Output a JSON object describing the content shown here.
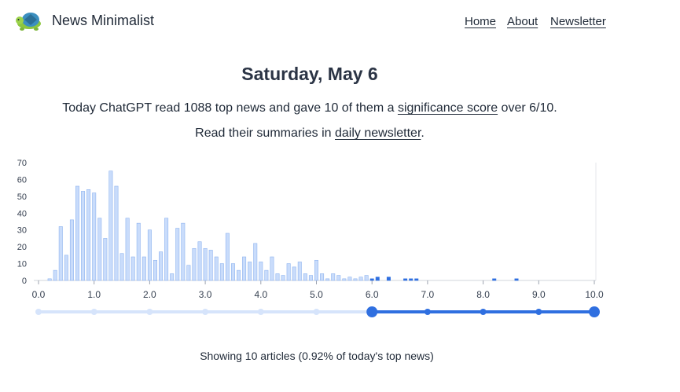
{
  "header": {
    "brand": "News Minimalist",
    "logo": "turtle-logo",
    "nav": {
      "home": "Home",
      "about": "About",
      "newsletter": "Newsletter"
    }
  },
  "main": {
    "date": "Saturday, May 6",
    "line1_pre": "Today ChatGPT read 1088 top news and gave 10 of them a ",
    "line1_link": "significance score",
    "line1_post": " over 6/10.",
    "line2_pre": "Read their summaries in ",
    "line2_link": "daily newsletter",
    "line2_post": "."
  },
  "colors": {
    "bar_light": "#c9dcfb",
    "bar_light_stroke": "#8fb4ef",
    "accent": "#2f6fe0",
    "track_light": "#d6e4fb"
  },
  "chart_data": {
    "type": "bar",
    "xlabel": "",
    "ylabel": "",
    "ylim": [
      0,
      70
    ],
    "xlim": [
      0,
      10
    ],
    "yticks": [
      "0",
      "10",
      "20",
      "30",
      "40",
      "50",
      "60",
      "70"
    ],
    "xticks": [
      "0.0",
      "1.0",
      "2.0",
      "3.0",
      "4.0",
      "5.0",
      "6.0",
      "7.0",
      "8.0",
      "9.0",
      "10.0"
    ],
    "x": [
      0.2,
      0.3,
      0.4,
      0.5,
      0.6,
      0.7,
      0.8,
      0.9,
      1.0,
      1.1,
      1.2,
      1.3,
      1.4,
      1.5,
      1.6,
      1.7,
      1.8,
      1.9,
      2.0,
      2.1,
      2.2,
      2.3,
      2.4,
      2.5,
      2.6,
      2.7,
      2.8,
      2.9,
      3.0,
      3.1,
      3.2,
      3.3,
      3.4,
      3.5,
      3.6,
      3.7,
      3.8,
      3.9,
      4.0,
      4.1,
      4.2,
      4.3,
      4.4,
      4.5,
      4.6,
      4.7,
      4.8,
      4.9,
      5.0,
      5.1,
      5.2,
      5.3,
      5.4,
      5.5,
      5.6,
      5.7,
      5.8,
      5.9,
      6.0,
      6.1,
      6.3,
      6.6,
      6.7,
      6.8,
      8.2,
      8.6
    ],
    "values": [
      1,
      6,
      32,
      15,
      36,
      56,
      53,
      54,
      52,
      37,
      25,
      65,
      56,
      16,
      37,
      14,
      34,
      14,
      30,
      12,
      17,
      37,
      4,
      31,
      34,
      9,
      19,
      23,
      19,
      18,
      14,
      10,
      28,
      10,
      6,
      14,
      11,
      22,
      11,
      6,
      14,
      4,
      3,
      10,
      8,
      11,
      4,
      3,
      12,
      4,
      1,
      4,
      3,
      1,
      2,
      1,
      2,
      3,
      1,
      2,
      2,
      1,
      1,
      1,
      1,
      1
    ]
  },
  "slider": {
    "min": 6.0,
    "max": 10.0
  },
  "footer": {
    "text": "Showing 10 articles (0.92% of today's top news)"
  }
}
